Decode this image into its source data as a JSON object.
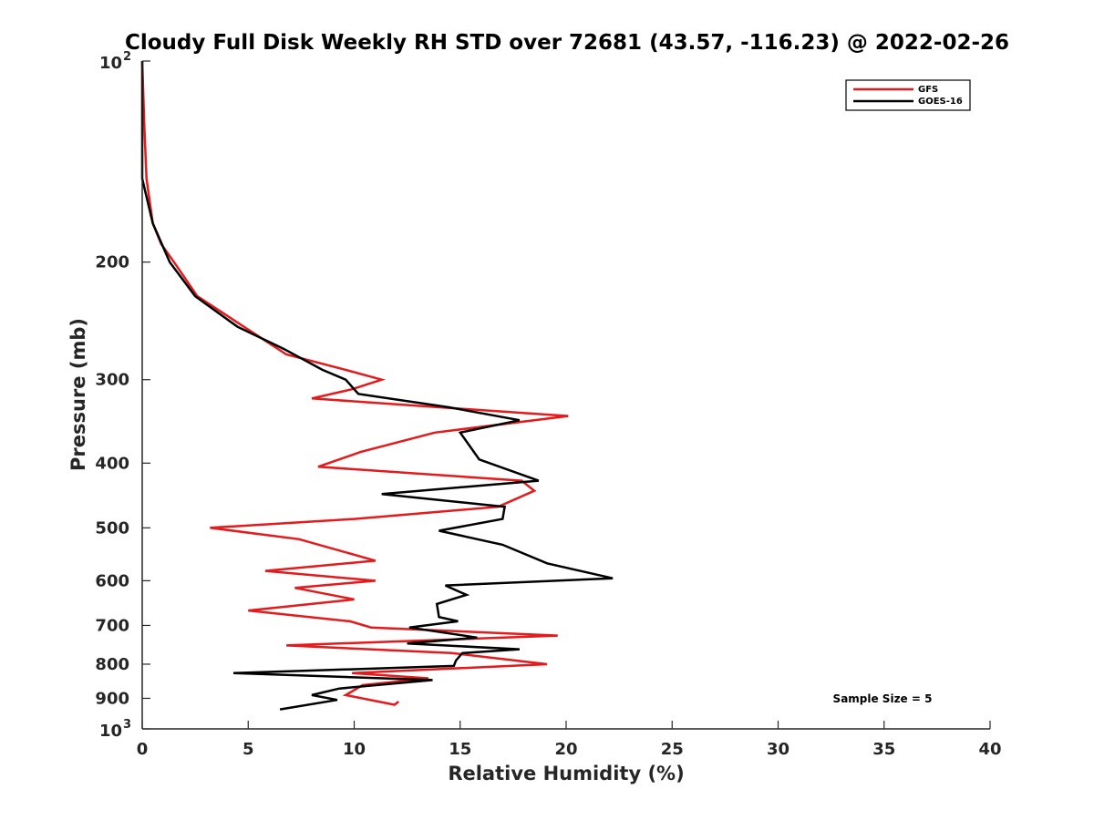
{
  "chart_data": {
    "type": "line",
    "title": "Cloudy Full Disk Weekly RH STD over 72681 (43.57, -116.23) @ 2022-02-26",
    "xlabel": "Relative Humidity (%)",
    "ylabel": "Pressure (mb)",
    "xlim": [
      0,
      40
    ],
    "ylim": [
      100,
      1000
    ],
    "y_scale": "log",
    "y_reversed": true,
    "x_ticks": [
      0,
      5,
      10,
      15,
      20,
      25,
      30,
      35,
      40
    ],
    "x_tick_labels": [
      "0",
      "5",
      "10",
      "15",
      "20",
      "25",
      "30",
      "35",
      "40"
    ],
    "y_ticks": [
      200,
      300,
      400,
      500,
      600,
      700,
      800,
      900
    ],
    "y_tick_labels": [
      "200",
      "300",
      "400",
      "500",
      "600",
      "700",
      "800",
      "900"
    ],
    "y_decade_labels": [
      {
        "value": 100,
        "base": "10",
        "exp": "2"
      },
      {
        "value": 1000,
        "base": "10",
        "exp": "3"
      }
    ],
    "legend_position": "top-right",
    "annotation": "Sample Size = 5",
    "series": [
      {
        "name": "GFS",
        "color": "#e41a1c",
        "points": [
          [
            0.0,
            100
          ],
          [
            0.1,
            125
          ],
          [
            0.2,
            150
          ],
          [
            0.5,
            175
          ],
          [
            0.9,
            188
          ],
          [
            1.5,
            200
          ],
          [
            2.6,
            225
          ],
          [
            4.8,
            250
          ],
          [
            6.8,
            275
          ],
          [
            9.6,
            290
          ],
          [
            11.3,
            300
          ],
          [
            9.9,
            310
          ],
          [
            8.0,
            320
          ],
          [
            14.1,
            330
          ],
          [
            20.1,
            340
          ],
          [
            13.8,
            360
          ],
          [
            10.3,
            385
          ],
          [
            8.3,
            405
          ],
          [
            17.9,
            425
          ],
          [
            18.5,
            440
          ],
          [
            16.8,
            465
          ],
          [
            10.0,
            485
          ],
          [
            3.2,
            500
          ],
          [
            7.4,
            520
          ],
          [
            11.0,
            560
          ],
          [
            5.8,
            580
          ],
          [
            11.0,
            600
          ],
          [
            7.2,
            615
          ],
          [
            10.0,
            640
          ],
          [
            5.0,
            665
          ],
          [
            9.8,
            690
          ],
          [
            10.8,
            705
          ],
          [
            19.6,
            725
          ],
          [
            6.8,
            750
          ],
          [
            14.6,
            770
          ],
          [
            19.1,
            800
          ],
          [
            9.9,
            825
          ],
          [
            13.5,
            840
          ],
          [
            10.4,
            860
          ],
          [
            9.6,
            890
          ],
          [
            11.9,
            920
          ],
          [
            12.1,
            910
          ]
        ]
      },
      {
        "name": "GOES-16",
        "color": "#000000",
        "points": [
          [
            0.0,
            100
          ],
          [
            0.0,
            125
          ],
          [
            0.0,
            150
          ],
          [
            0.5,
            175
          ],
          [
            1.3,
            200
          ],
          [
            2.5,
            225
          ],
          [
            4.5,
            250
          ],
          [
            6.7,
            270
          ],
          [
            8.5,
            290
          ],
          [
            9.6,
            300
          ],
          [
            10.2,
            315
          ],
          [
            14.5,
            330
          ],
          [
            17.8,
            345
          ],
          [
            15.0,
            360
          ],
          [
            15.9,
            395
          ],
          [
            18.7,
            425
          ],
          [
            11.3,
            445
          ],
          [
            17.1,
            465
          ],
          [
            17.0,
            485
          ],
          [
            14.0,
            505
          ],
          [
            17.0,
            530
          ],
          [
            19.1,
            565
          ],
          [
            22.2,
            595
          ],
          [
            14.3,
            610
          ],
          [
            15.3,
            630
          ],
          [
            13.9,
            650
          ],
          [
            14.0,
            680
          ],
          [
            14.9,
            690
          ],
          [
            12.6,
            705
          ],
          [
            15.8,
            730
          ],
          [
            12.5,
            745
          ],
          [
            17.8,
            760
          ],
          [
            15.1,
            770
          ],
          [
            14.8,
            790
          ],
          [
            14.7,
            805
          ],
          [
            4.3,
            825
          ],
          [
            13.7,
            845
          ],
          [
            9.3,
            870
          ],
          [
            8.0,
            890
          ],
          [
            9.2,
            905
          ],
          [
            6.5,
            935
          ]
        ]
      }
    ]
  }
}
